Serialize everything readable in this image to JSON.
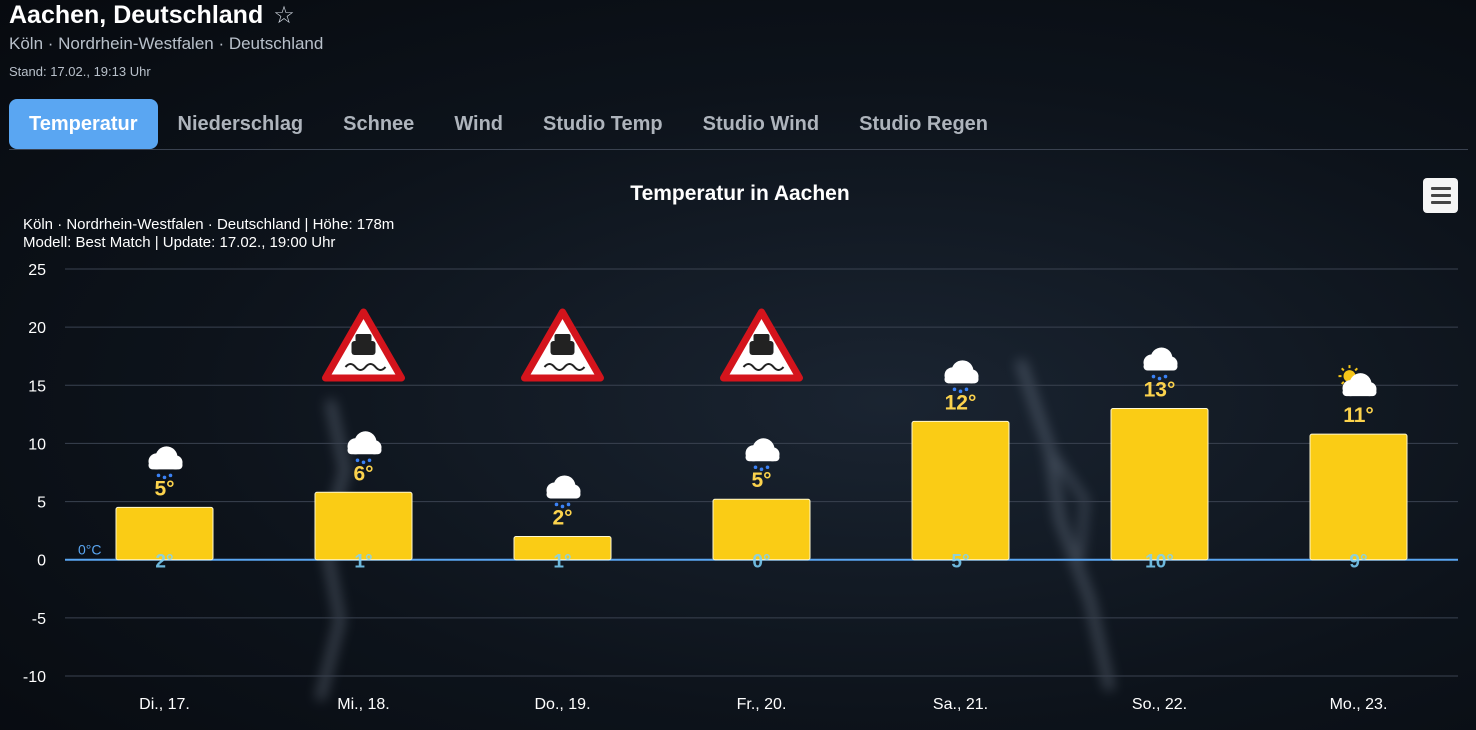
{
  "header": {
    "title": "Aachen, Deutschland",
    "star": "☆",
    "subtitle": "Köln · Nordrhein-Westfalen · Deutschland",
    "stand": "Stand: 17.02., 19:13 Uhr"
  },
  "tabs": [
    {
      "label": "Temperatur",
      "active": true
    },
    {
      "label": "Niederschlag",
      "active": false
    },
    {
      "label": "Schnee",
      "active": false
    },
    {
      "label": "Wind",
      "active": false
    },
    {
      "label": "Studio Temp",
      "active": false
    },
    {
      "label": "Studio Wind",
      "active": false
    },
    {
      "label": "Studio Regen",
      "active": false
    }
  ],
  "menu_icon": "hamburger-menu-icon",
  "colors": {
    "bar": "#facc15",
    "max_label": "#fcd34d",
    "min_label": "#7dd3fc",
    "zero_line": "#5aa6f2",
    "grid": "#3a4250",
    "tab_active": "#5aa6f2"
  },
  "chart_data": {
    "type": "bar",
    "title": "Temperatur in Aachen",
    "subtitle_lines": [
      "Köln · Nordrhein-Westfalen · Deutschland | Höhe: 178m",
      "Modell: Best Match | Update: 17.02., 19:00 Uhr"
    ],
    "categories": [
      "Di., 17.",
      "Mi., 18.",
      "Do., 19.",
      "Fr., 20.",
      "Sa., 21.",
      "So., 22.",
      "Mo., 23."
    ],
    "series": [
      {
        "values": [
          4.5,
          5.8,
          2.0,
          5.2,
          11.9,
          13.0,
          10.8
        ]
      }
    ],
    "max_labels": [
      "5°",
      "6°",
      "2°",
      "5°",
      "12°",
      "13°",
      "11°"
    ],
    "min_labels": [
      "2°",
      "1°",
      "1°",
      "0°",
      "5°",
      "10°",
      "9°"
    ],
    "weather_icons": [
      "snow-rain-cloud-icon",
      "snow-rain-cloud-icon",
      "snow-rain-cloud-icon",
      "snow-rain-cloud-icon",
      "rain-cloud-icon",
      "rain-cloud-icon",
      "sun-cloud-icon"
    ],
    "warnings": [
      false,
      true,
      true,
      true,
      false,
      false,
      false
    ],
    "warning_icon": "slippery-road-warning-icon",
    "zero_label": "0°C",
    "ylim": [
      -10,
      25
    ],
    "yticks": [
      25,
      20,
      15,
      10,
      5,
      0,
      -5,
      -10
    ],
    "grid": true
  }
}
